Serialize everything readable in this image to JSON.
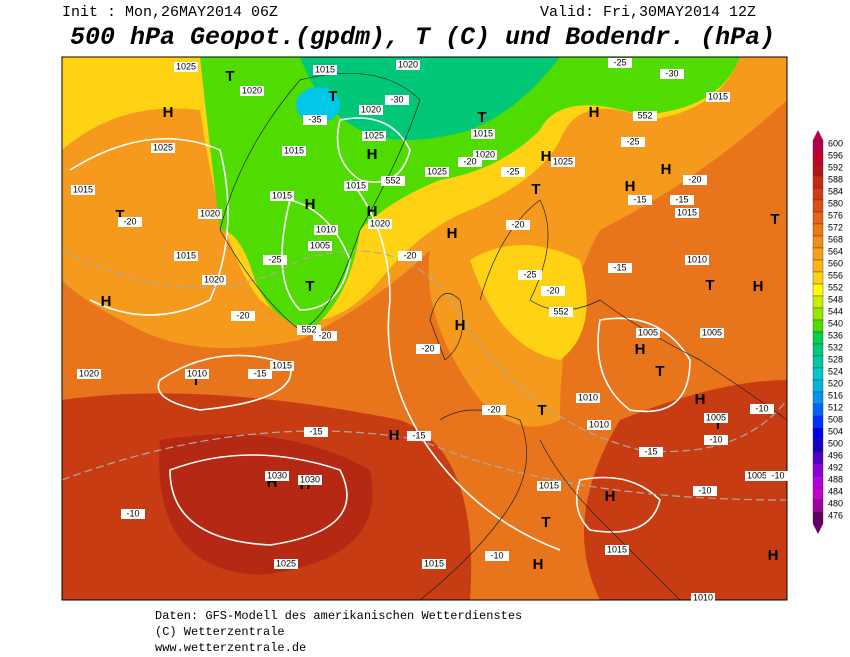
{
  "header": {
    "init": "Init : Mon,26MAY2014 06Z",
    "valid": "Valid: Fri,30MAY2014 12Z",
    "title": "500 hPa Geopot.(gpdm), T (C) und Bodendr. (hPa)"
  },
  "footer": [
    "Daten: GFS-Modell des amerikanischen Wetterdienstes",
    "(C) Wetterzentrale",
    "www.wetterzentrale.de"
  ],
  "colorbar": {
    "levels": [
      600,
      596,
      592,
      588,
      584,
      580,
      576,
      572,
      568,
      564,
      560,
      556,
      552,
      548,
      544,
      540,
      536,
      532,
      528,
      524,
      520,
      516,
      512,
      508,
      504,
      500,
      496,
      492,
      488,
      484,
      480,
      476
    ],
    "colors": [
      "#b4004b",
      "#c80028",
      "#b41414",
      "#c82814",
      "#d23c14",
      "#dc5014",
      "#e66414",
      "#f07814",
      "#f58c14",
      "#faa014",
      "#ffb414",
      "#ffd214",
      "#ffff00",
      "#c8f000",
      "#96e600",
      "#50dc00",
      "#00d250",
      "#00c878",
      "#00c8a0",
      "#00c8c8",
      "#00b4dc",
      "#0096f0",
      "#0064ff",
      "#0032ff",
      "#0000f0",
      "#1400c8",
      "#5000c8",
      "#8c00dc",
      "#b400e6",
      "#c800c8",
      "#a000a0",
      "#640064"
    ]
  },
  "map": {
    "centers": [
      "T",
      "H",
      "T",
      "H",
      "H",
      "H",
      "T",
      "T",
      "H",
      "H",
      "H",
      "T",
      "H",
      "H",
      "H",
      "H",
      "T",
      "T",
      "H",
      "T",
      "H",
      "T",
      "H",
      "T",
      "T",
      "H",
      "T",
      "H",
      "H",
      "H",
      "T",
      "H",
      "H"
    ],
    "labels": [
      "1025",
      "1020",
      "1015",
      "1020",
      "1025",
      "1015",
      "1020",
      "1015",
      "1020",
      "1020",
      "1010",
      "1015",
      "1015",
      "1025",
      "1015",
      "1015",
      "1010",
      "1005",
      "1020",
      "1025",
      "1020",
      "1015",
      "1020",
      "1025",
      "1015",
      "1015",
      "1010",
      "1005",
      "1005",
      "1010",
      "1010",
      "1005",
      "1005",
      "1015",
      "1015",
      "1015",
      "1025",
      "1030",
      "1030",
      "1010",
      "-35",
      "-30",
      "-30",
      "-25",
      "-25",
      "-25",
      "-20",
      "-20",
      "-20",
      "-20",
      "-20",
      "-25",
      "-20",
      "-15",
      "-20",
      "-15",
      "-15",
      "-20",
      "-15",
      "-15",
      "-15",
      "-20",
      "-10",
      "-10",
      "-10",
      "-10",
      "-15",
      "-10",
      "-20",
      "-25",
      "-10",
      "552",
      "552",
      "552",
      "552"
    ]
  }
}
